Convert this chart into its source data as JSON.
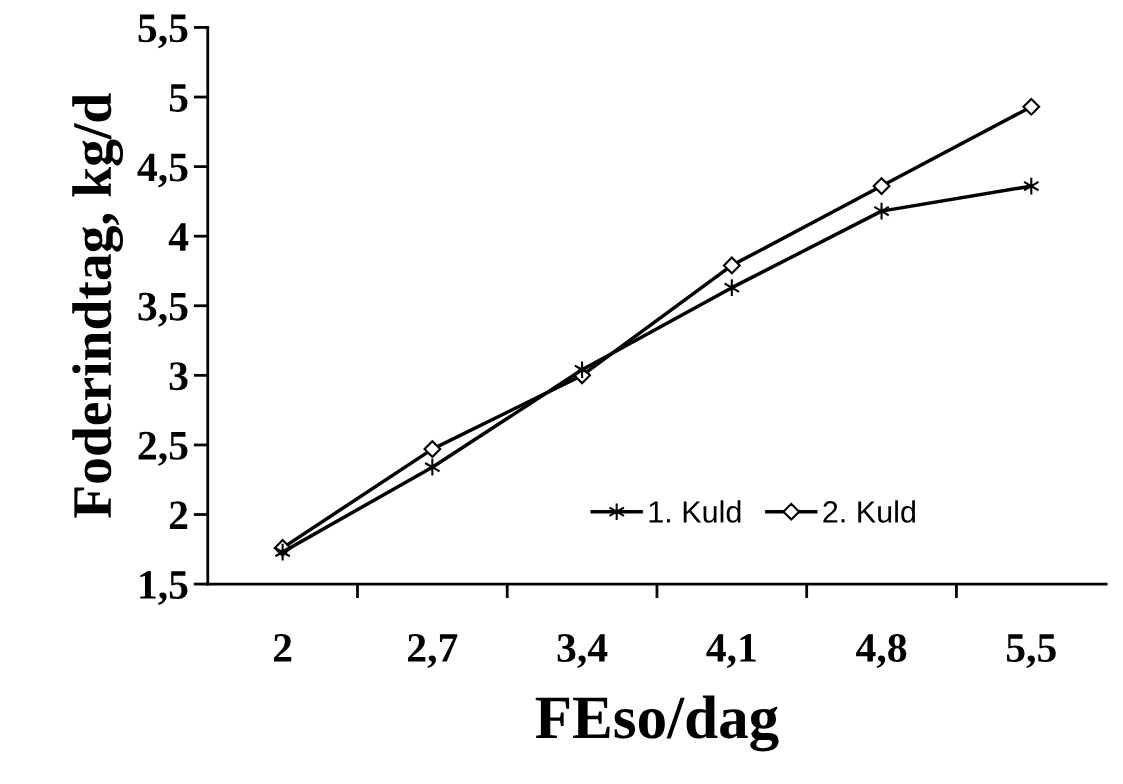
{
  "chart_data": {
    "type": "line",
    "xlabel": "FEso/dag",
    "ylabel": "Foderindtag, kg/d",
    "categories": [
      "2",
      "2,7",
      "3,4",
      "4,1",
      "4,8",
      "5,5"
    ],
    "series": [
      {
        "name": "1. Kuld",
        "color": "#000000",
        "marker": "cross",
        "values": [
          1.73,
          2.34,
          3.04,
          3.63,
          4.18,
          4.36
        ]
      },
      {
        "name": "2. Kuld",
        "color": "#000000",
        "marker": "diamond",
        "values": [
          1.76,
          2.47,
          3.0,
          3.79,
          4.36,
          4.93
        ]
      }
    ],
    "ylim": [
      1.5,
      5.5
    ],
    "yticks": [
      {
        "value": 1.5,
        "label": "1,5"
      },
      2,
      {
        "value": 2.5,
        "label": "2,5"
      },
      3,
      {
        "value": 3.5,
        "label": "3,5"
      },
      4,
      {
        "value": 4.5,
        "label": "4,5"
      },
      5,
      {
        "value": 5.5,
        "label": "5,5"
      }
    ],
    "grid": false,
    "legend": "bottom right",
    "line_style": "solid"
  }
}
